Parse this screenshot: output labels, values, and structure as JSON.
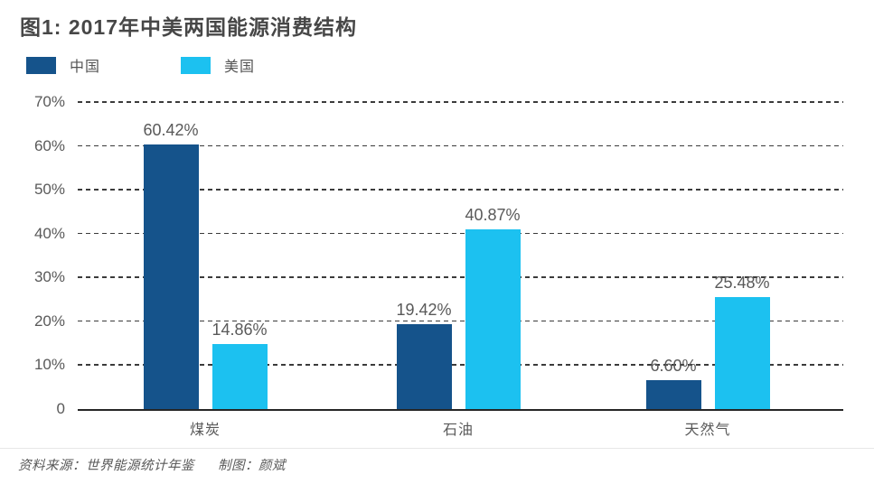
{
  "page": {
    "title": "图1: 2017年中美两国能源消费结构"
  },
  "footer": {
    "source": "资料来源：世界能源统计年鉴",
    "credit": "制图：颜斌"
  },
  "chart_data": {
    "type": "bar",
    "title": "图1: 2017年中美两国能源消费结构",
    "categories": [
      "煤炭",
      "石油",
      "天然气"
    ],
    "series": [
      {
        "name": "中国",
        "color": "#15538b",
        "values": [
          60.42,
          19.42,
          6.6
        ],
        "labels": [
          "60.42%",
          "19.42%",
          "6.60%"
        ]
      },
      {
        "name": "美国",
        "color": "#1cc1f0",
        "values": [
          14.86,
          40.87,
          25.48
        ],
        "labels": [
          "14.86%",
          "40.87%",
          "25.48%"
        ]
      }
    ],
    "y_axis": {
      "ticks": [
        "70%",
        "60%",
        "50%",
        "40%",
        "30%",
        "20%",
        "10%",
        "0"
      ],
      "tick_values": [
        70,
        60,
        50,
        40,
        30,
        20,
        10,
        0
      ],
      "ylim": [
        0,
        70
      ],
      "grid": "dashed horizontal, solid baseline"
    },
    "legend_position": "top-left",
    "value_labels": "above bars"
  }
}
